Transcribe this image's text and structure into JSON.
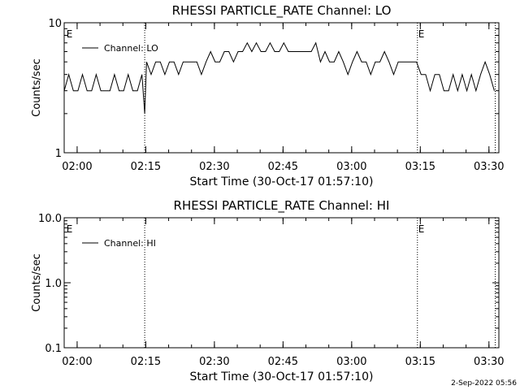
{
  "footer_timestamp": "2-Sep-2022 05:56",
  "chart_data": [
    {
      "type": "line",
      "title": "RHESSI PARTICLE_RATE Channel: LO",
      "xlabel": "Start Time (30-Oct-17 01:57:10)",
      "ylabel": "Counts/sec",
      "yscale": "log",
      "ylim": [
        1,
        10
      ],
      "y_ticks": [
        {
          "value": 1,
          "label": "1"
        },
        {
          "value": 10,
          "label": "10"
        }
      ],
      "xlim_minutes": [
        0,
        95
      ],
      "x_ticks": [
        {
          "minutes": 2.83,
          "label": "02:00"
        },
        {
          "minutes": 17.83,
          "label": "02:15"
        },
        {
          "minutes": 32.83,
          "label": "02:30"
        },
        {
          "minutes": 47.83,
          "label": "02:45"
        },
        {
          "minutes": 62.83,
          "label": "03:00"
        },
        {
          "minutes": 77.83,
          "label": "03:15"
        },
        {
          "minutes": 92.83,
          "label": "03:30"
        }
      ],
      "vertical_markers_minutes": [
        17.6,
        77.2,
        94.2
      ],
      "event_markers": [
        {
          "minutes": 0.3,
          "label": "E"
        },
        {
          "minutes": 77.2,
          "label": "E"
        }
      ],
      "legend": {
        "position": "top-left",
        "entries": [
          "Channel: LO"
        ]
      },
      "series": [
        {
          "name": "Channel: LO",
          "x": [
            0,
            1,
            2,
            3,
            4,
            5,
            6,
            7,
            8,
            9,
            10,
            11,
            12,
            13,
            14,
            15,
            16,
            17,
            17.6,
            18,
            19,
            20,
            21,
            22,
            23,
            24,
            25,
            26,
            27,
            28,
            29,
            30,
            31,
            32,
            33,
            34,
            35,
            36,
            37,
            38,
            39,
            40,
            41,
            42,
            43,
            44,
            45,
            46,
            47,
            48,
            49,
            50,
            51,
            52,
            53,
            54,
            55,
            56,
            57,
            58,
            59,
            60,
            61,
            62,
            63,
            64,
            65,
            66,
            67,
            68,
            69,
            70,
            71,
            72,
            73,
            74,
            75,
            76,
            77,
            78,
            79,
            80,
            81,
            82,
            83,
            84,
            85,
            86,
            87,
            88,
            89,
            90,
            91,
            92,
            93,
            94
          ],
          "y": [
            3,
            4,
            3,
            3,
            4,
            3,
            3,
            4,
            3,
            3,
            3,
            4,
            3,
            3,
            4,
            3,
            3,
            4,
            2,
            5,
            4,
            5,
            5,
            4,
            5,
            5,
            4,
            5,
            5,
            5,
            5,
            4,
            5,
            6,
            5,
            5,
            6,
            6,
            5,
            6,
            6,
            7,
            6,
            7,
            6,
            6,
            7,
            6,
            6,
            7,
            6,
            6,
            6,
            6,
            6,
            6,
            7,
            5,
            6,
            5,
            5,
            6,
            5,
            4,
            5,
            6,
            5,
            5,
            4,
            5,
            5,
            6,
            5,
            4,
            5,
            5,
            5,
            5,
            5,
            4,
            4,
            3,
            4,
            4,
            3,
            3,
            4,
            3,
            4,
            3,
            4,
            3,
            4,
            5,
            4,
            3
          ]
        }
      ]
    },
    {
      "type": "line",
      "title": "RHESSI PARTICLE_RATE Channel: HI",
      "xlabel": "Start Time (30-Oct-17 01:57:10)",
      "ylabel": "Counts/sec",
      "yscale": "log",
      "ylim": [
        0.1,
        10
      ],
      "y_ticks": [
        {
          "value": 0.1,
          "label": "0.1"
        },
        {
          "value": 1,
          "label": "1.0"
        },
        {
          "value": 10,
          "label": "10.0"
        }
      ],
      "xlim_minutes": [
        0,
        95
      ],
      "x_ticks": [
        {
          "minutes": 2.83,
          "label": "02:00"
        },
        {
          "minutes": 17.83,
          "label": "02:15"
        },
        {
          "minutes": 32.83,
          "label": "02:30"
        },
        {
          "minutes": 47.83,
          "label": "02:45"
        },
        {
          "minutes": 62.83,
          "label": "03:00"
        },
        {
          "minutes": 77.83,
          "label": "03:15"
        },
        {
          "minutes": 92.83,
          "label": "03:30"
        }
      ],
      "vertical_markers_minutes": [
        17.6,
        77.2,
        94.2
      ],
      "event_markers": [
        {
          "minutes": 0.3,
          "label": "E"
        },
        {
          "minutes": 77.2,
          "label": "E"
        }
      ],
      "legend": {
        "position": "top-left",
        "entries": [
          "Channel: HI"
        ]
      },
      "series": [
        {
          "name": "Channel: HI",
          "x": [],
          "y": []
        }
      ]
    }
  ]
}
